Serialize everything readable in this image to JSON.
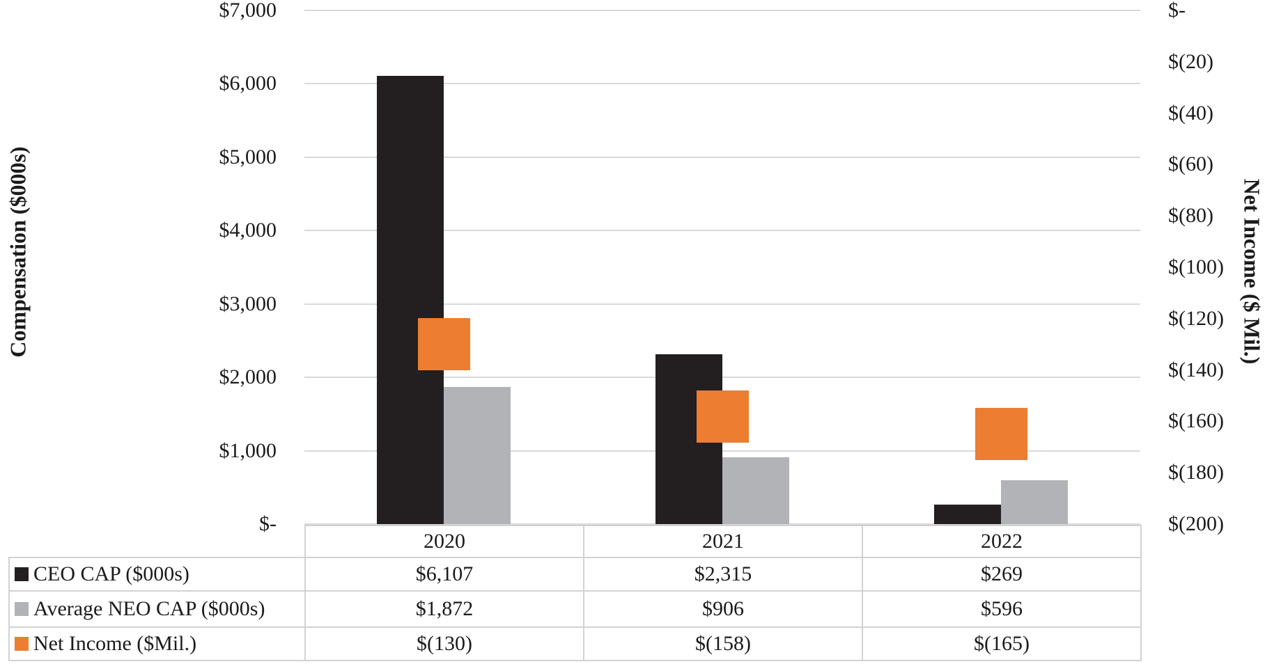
{
  "chart_data": {
    "type": "bar",
    "title": "",
    "categories": [
      "2020",
      "2021",
      "2022"
    ],
    "series": [
      {
        "name": "CEO CAP ($000s)",
        "type": "bar",
        "axis": "left",
        "color": "#231F20",
        "values": [
          6107,
          2315,
          269
        ],
        "table_labels": [
          "$6,107",
          "$2,315",
          "$269"
        ]
      },
      {
        "name": "Average NEO CAP ($000s)",
        "type": "bar",
        "axis": "left",
        "color": "#B1B3B6",
        "values": [
          1872,
          906,
          596
        ],
        "table_labels": [
          "$1,872",
          "$906",
          "$596"
        ]
      },
      {
        "name": "Net Income ($Mil.)",
        "type": "scatter_square",
        "axis": "right",
        "color": "#ED7D31",
        "values": [
          -130,
          -158,
          -165
        ],
        "table_labels": [
          "$(130)",
          "$(158)",
          "$(165)"
        ]
      }
    ],
    "left_axis": {
      "label": "Compensation ($000s)",
      "min": 0,
      "max": 7000,
      "tick_step": 1000,
      "tick_labels": [
        "$7,000",
        "$6,000",
        "$5,000",
        "$4,000",
        "$3,000",
        "$2,000",
        "$1,000",
        "$-"
      ]
    },
    "right_axis": {
      "label": "Net Income ($ Mil.)",
      "min": -200,
      "max": 0,
      "tick_step": 20,
      "tick_labels": [
        "$-",
        "$(20)",
        "$(40)",
        "$(60)",
        "$(80)",
        "$(100)",
        "$(120)",
        "$(140)",
        "$(160)",
        "$(180)",
        "$(200)"
      ]
    },
    "grid": true,
    "legend_position": "table-left",
    "colors": {
      "grid": "#D9D9D9",
      "table_border": "#D2D2D2",
      "text": "#1C1A1B"
    }
  }
}
